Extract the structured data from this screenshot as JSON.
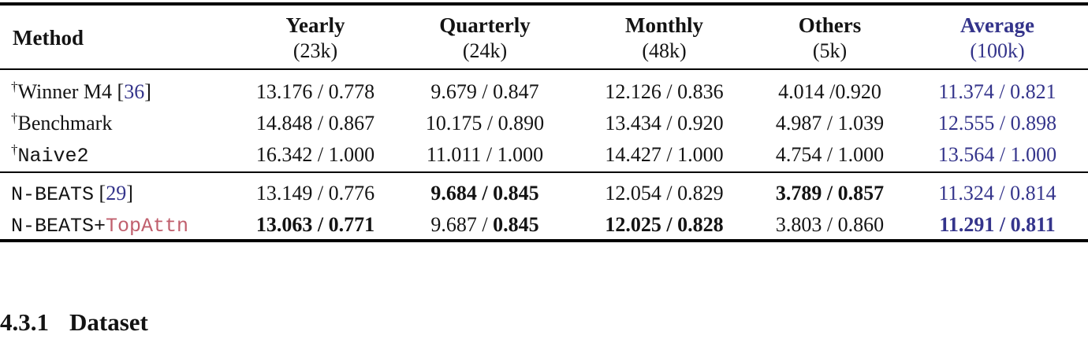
{
  "colors": {
    "accent_blue": "#34348b",
    "accent_rose": "#c05f6d",
    "text": "#131313",
    "rule": "#000000"
  },
  "table": {
    "columns": [
      {
        "id": "method",
        "label": "Method",
        "sub": "",
        "accent": false
      },
      {
        "id": "yearly",
        "label": "Yearly",
        "sub": "(23k)",
        "accent": false
      },
      {
        "id": "quarterly",
        "label": "Quarterly",
        "sub": "(24k)",
        "accent": false
      },
      {
        "id": "monthly",
        "label": "Monthly",
        "sub": "(48k)",
        "accent": false
      },
      {
        "id": "others",
        "label": "Others",
        "sub": "(5k)",
        "accent": false
      },
      {
        "id": "average",
        "label": "Average",
        "sub": "(100k)",
        "accent": true
      }
    ],
    "groups": [
      {
        "rows": [
          {
            "method": [
              {
                "t": "†",
                "sup": true
              },
              {
                "t": "Winner M4 "
              },
              {
                "t": "["
              },
              {
                "t": "36",
                "color": "blue"
              },
              {
                "t": "]"
              }
            ],
            "cells": [
              [
                {
                  "t": "13.176 / 0.778"
                }
              ],
              [
                {
                  "t": "9.679 / 0.847"
                }
              ],
              [
                {
                  "t": "12.126 / 0.836"
                }
              ],
              [
                {
                  "t": "4.014 /0.920"
                }
              ],
              [
                {
                  "t": "11.374 / 0.821"
                }
              ]
            ]
          },
          {
            "method": [
              {
                "t": "†",
                "sup": true
              },
              {
                "t": "Benchmark"
              }
            ],
            "cells": [
              [
                {
                  "t": "14.848 / 0.867"
                }
              ],
              [
                {
                  "t": "10.175 / 0.890"
                }
              ],
              [
                {
                  "t": "13.434 / 0.920"
                }
              ],
              [
                {
                  "t": "4.987 / 1.039"
                }
              ],
              [
                {
                  "t": "12.555 / 0.898"
                }
              ]
            ]
          },
          {
            "method": [
              {
                "t": "†",
                "sup": true
              },
              {
                "t": "Naive2",
                "mono": true
              }
            ],
            "cells": [
              [
                {
                  "t": "16.342 / 1.000"
                }
              ],
              [
                {
                  "t": "11.011 / 1.000"
                }
              ],
              [
                {
                  "t": "14.427 / 1.000"
                }
              ],
              [
                {
                  "t": "4.754 / 1.000"
                }
              ],
              [
                {
                  "t": "13.564 / 1.000"
                }
              ]
            ]
          }
        ]
      },
      {
        "rows": [
          {
            "method": [
              {
                "t": "N-BEATS",
                "mono": true
              },
              {
                "t": " ["
              },
              {
                "t": "29",
                "color": "blue"
              },
              {
                "t": "]"
              }
            ],
            "cells": [
              [
                {
                  "t": "13.149 / 0.776"
                }
              ],
              [
                {
                  "t": "9.684 / 0.845",
                  "b": true
                }
              ],
              [
                {
                  "t": "12.054 / 0.829"
                }
              ],
              [
                {
                  "t": "3.789 / 0.857",
                  "b": true
                }
              ],
              [
                {
                  "t": "11.324 / 0.814"
                }
              ]
            ]
          },
          {
            "method": [
              {
                "t": "N-BEATS+",
                "mono": true
              },
              {
                "t": "TopAttn",
                "mono": true,
                "color": "rose"
              }
            ],
            "cells": [
              [
                {
                  "t": "13.063 / 0.771",
                  "b": true
                }
              ],
              [
                {
                  "t": "9.687 / "
                },
                {
                  "t": "0.845",
                  "b": true
                }
              ],
              [
                {
                  "t": "12.025 / 0.828",
                  "b": true
                }
              ],
              [
                {
                  "t": "3.803 / 0.860"
                }
              ],
              [
                {
                  "t": "11.291 / 0.811",
                  "b": true
                }
              ]
            ]
          }
        ]
      }
    ]
  },
  "section_heading": {
    "number": "4.3.1",
    "title": "Dataset"
  }
}
